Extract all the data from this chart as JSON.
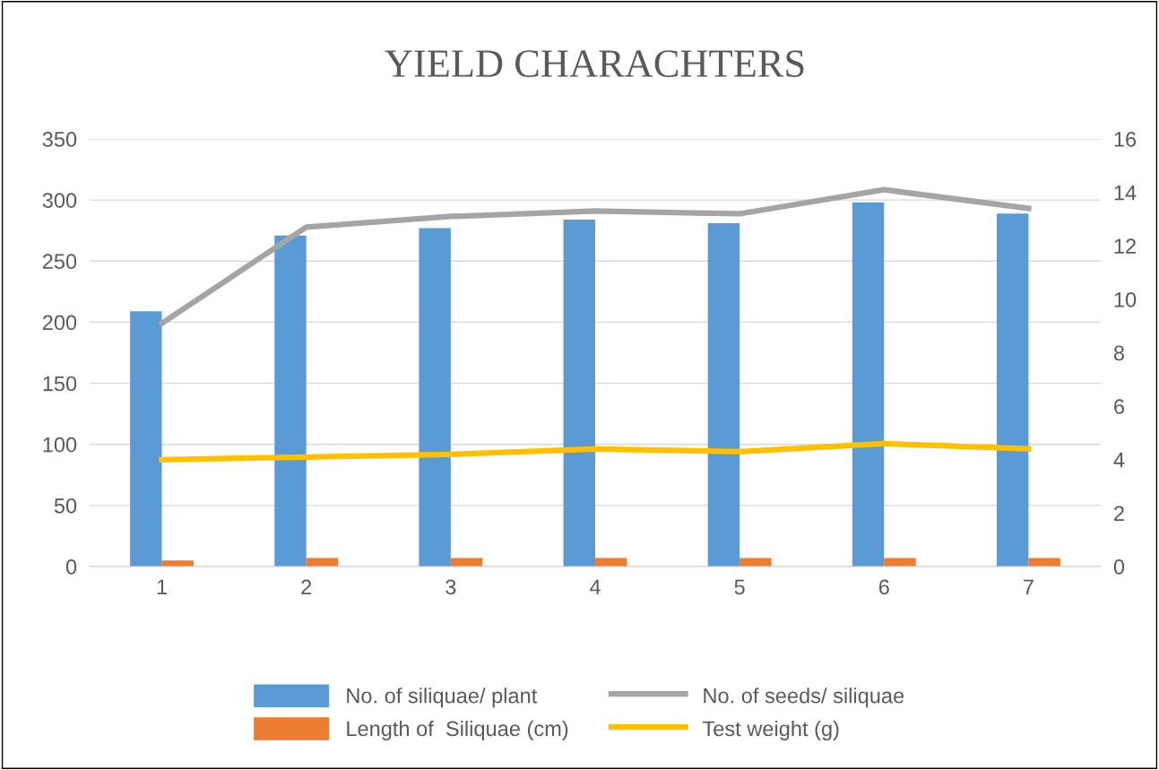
{
  "chart_data": {
    "type": "bar",
    "title": "YIELD CHARACHTERS",
    "categories": [
      "1",
      "2",
      "3",
      "4",
      "5",
      "6",
      "7"
    ],
    "series": [
      {
        "name": "No. of siliquae/ plant",
        "color": "#5b9bd5",
        "values": [
          209,
          271,
          277,
          284,
          281,
          298,
          289
        ]
      },
      {
        "name": "Length of  Siliquae (cm)",
        "color": "#ed7d31",
        "values": [
          5,
          7,
          7,
          7,
          7,
          7,
          7
        ]
      },
      {
        "name": "No. of seeds/ siliquae",
        "type": "line",
        "axis": "y2",
        "color": "#a5a5a5",
        "values": [
          9.1,
          12.7,
          13.1,
          13.3,
          13.2,
          14.1,
          13.4
        ]
      },
      {
        "name": "Test weight (g)",
        "type": "line",
        "axis": "y2",
        "color": "#ffc000",
        "values": [
          4.0,
          4.1,
          4.2,
          4.4,
          4.3,
          4.6,
          4.4
        ]
      }
    ],
    "ylim": [
      0,
      350
    ],
    "yticks": [
      0,
      50,
      100,
      150,
      200,
      250,
      300,
      350
    ],
    "y2lim": [
      0,
      16
    ],
    "y2ticks": [
      0,
      2,
      4,
      6,
      8,
      10,
      12,
      14,
      16
    ],
    "grid": "y",
    "legend": "bottom",
    "marker": "none",
    "line_style": "solid"
  }
}
